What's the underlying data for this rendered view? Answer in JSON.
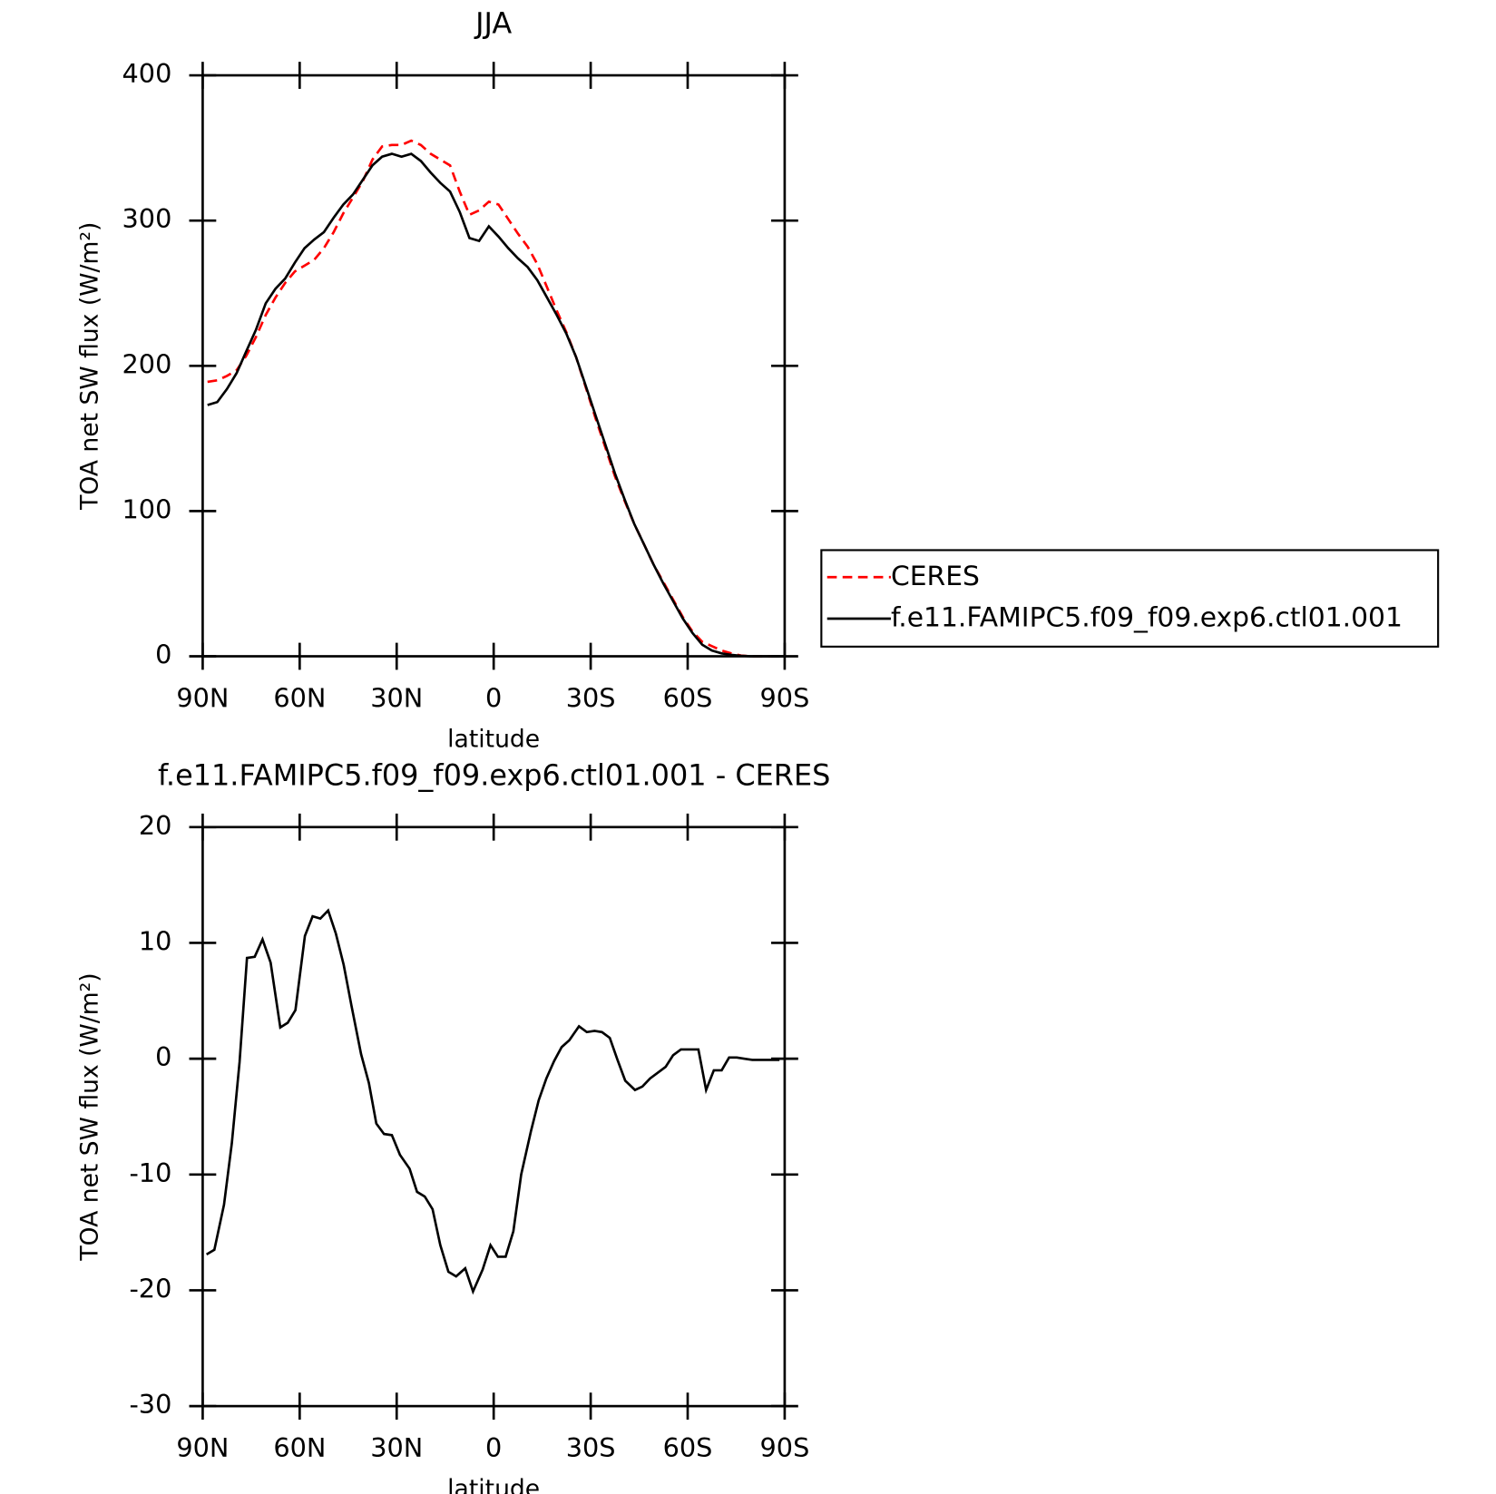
{
  "chart_data": [
    {
      "type": "line",
      "title": "JJA",
      "xlabel": "latitude",
      "ylabel": "TOA net SW flux (W/m²)",
      "x": [
        88.5,
        85.5,
        82.5,
        79.5,
        76.5,
        73.5,
        70.5,
        67.5,
        64.5,
        61.5,
        58.5,
        55.5,
        52.5,
        49.5,
        46.5,
        43.5,
        40.5,
        37.5,
        34.5,
        31.5,
        28.5,
        25.5,
        22.5,
        19.5,
        16.5,
        13.5,
        10.5,
        7.5,
        4.5,
        1.5,
        -1.5,
        -4.5,
        -7.5,
        -10.5,
        -13.5,
        -16.5,
        -19.5,
        -22.5,
        -25.5,
        -28.5,
        -31.5,
        -34.5,
        -37.5,
        -40.5,
        -43.5,
        -46.5,
        -49.5,
        -52.5,
        -55.5,
        -58.5,
        -61.5,
        -64.5,
        -67.5,
        -70.5,
        -73.5,
        -76.5,
        -79.5,
        -82.5,
        -85.5,
        -88.5
      ],
      "series": [
        {
          "name": "CERES",
          "color": "#ff0000",
          "linestyle": "dashed",
          "values": [
            189,
            190,
            193,
            197,
            207,
            220,
            235,
            247,
            257,
            265,
            269,
            273,
            281,
            292,
            305,
            316,
            327,
            342,
            351,
            352,
            352,
            355,
            352,
            346,
            342,
            338,
            320,
            304,
            307,
            313,
            311,
            301,
            291,
            282,
            270,
            254,
            238,
            223,
            206,
            185,
            164,
            144,
            124,
            107,
            91,
            77,
            63,
            51,
            39,
            27,
            17,
            10,
            7,
            4,
            2,
            0.5,
            0,
            0,
            0,
            0
          ]
        },
        {
          "name": "f.e11.FAMIPC5.f09_f09.exp6.ctl01.001",
          "color": "#000000",
          "linestyle": "solid",
          "values": [
            173,
            175,
            184,
            195,
            210,
            225,
            243,
            253,
            260,
            271,
            281,
            287,
            292,
            302,
            311,
            318,
            328,
            338,
            344,
            346,
            344,
            346,
            341,
            333,
            326,
            320,
            306,
            288,
            286,
            296,
            289,
            281,
            274,
            268,
            259,
            247,
            235,
            222,
            206,
            186,
            166,
            146,
            126,
            108,
            91,
            77,
            63,
            50,
            38,
            26,
            16,
            8,
            4,
            2,
            1,
            0.3,
            0,
            0,
            0,
            0
          ]
        }
      ],
      "xlim": [
        90,
        -90
      ],
      "xticks": [
        {
          "value": 90,
          "label": "90N"
        },
        {
          "value": 60,
          "label": "60N"
        },
        {
          "value": 30,
          "label": "30N"
        },
        0,
        {
          "value": -30,
          "label": "30S"
        },
        {
          "value": -60,
          "label": "60S"
        },
        {
          "value": -90,
          "label": "90S"
        }
      ],
      "ylim": [
        0,
        400
      ],
      "yticks": [
        0,
        100,
        200,
        300,
        400
      ],
      "legend": "right"
    },
    {
      "type": "line",
      "title": "f.e11.FAMIPC5.f09_f09.exp6.ctl01.001 - CERES",
      "xlabel": "latitude",
      "ylabel": "TOA net SW flux (W/m²)",
      "x": [
        88.8,
        86.4,
        83.4,
        81,
        78.6,
        76.3,
        73.9,
        71.5,
        69,
        66,
        63.7,
        61.3,
        58.4,
        56,
        53.6,
        51.2,
        48.8,
        46.4,
        44,
        41,
        38.6,
        36.3,
        33.9,
        31.5,
        29,
        26,
        23.7,
        21.3,
        18.9,
        16.5,
        14,
        11.6,
        8.8,
        6.4,
        3.4,
        1,
        -1.3,
        -3.7,
        -6.1,
        -8.5,
        -11.5,
        -13.9,
        -16.3,
        -18.7,
        -21,
        -23.4,
        -26.4,
        -28.8,
        -31.2,
        -33.5,
        -35.9,
        -38.3,
        -40.7,
        -43.7,
        -46,
        -48.4,
        -50.8,
        -53.2,
        -55.5,
        -57.9,
        -60.9,
        -63.3,
        -65.7,
        -68.1,
        -70.5,
        -72.8,
        -75.2,
        -77.6,
        -80,
        -82.4,
        -84.8,
        -88.4
      ],
      "series": [
        {
          "color": "#000000",
          "linestyle": "solid",
          "values": [
            -16.9,
            -16.5,
            -12.6,
            -7.3,
            -0.3,
            8.7,
            8.8,
            10.3,
            8.3,
            2.7,
            3.1,
            4.2,
            10.6,
            12.3,
            12.1,
            12.8,
            10.8,
            8.1,
            4.6,
            0.4,
            -2.1,
            -5.6,
            -6.5,
            -6.6,
            -8.3,
            -9.5,
            -11.5,
            -11.9,
            -13,
            -16.1,
            -18.4,
            -18.8,
            -18.1,
            -20.1,
            -18.2,
            -16.1,
            -17.1,
            -17.1,
            -14.9,
            -10,
            -6.3,
            -3.6,
            -1.7,
            -0.2,
            1,
            1.6,
            2.8,
            2.3,
            2.4,
            2.3,
            1.8,
            -0.1,
            -1.9,
            -2.7,
            -2.4,
            -1.7,
            -1.2,
            -0.7,
            0.3,
            0.8,
            0.8,
            0.8,
            -2.7,
            -1,
            -1,
            0.1,
            0.1,
            0,
            -0.1,
            -0.1,
            -0.1,
            -0.1
          ]
        }
      ],
      "xlim": [
        90,
        -90
      ],
      "xticks": [
        {
          "value": 90,
          "label": "90N"
        },
        {
          "value": 60,
          "label": "60N"
        },
        {
          "value": 30,
          "label": "30N"
        },
        0,
        {
          "value": -30,
          "label": "30S"
        },
        {
          "value": -60,
          "label": "60S"
        },
        {
          "value": -90,
          "label": "90S"
        }
      ],
      "ylim": [
        -30,
        20
      ],
      "yticks": [
        -30,
        -20,
        -10,
        0,
        10,
        20
      ]
    }
  ]
}
